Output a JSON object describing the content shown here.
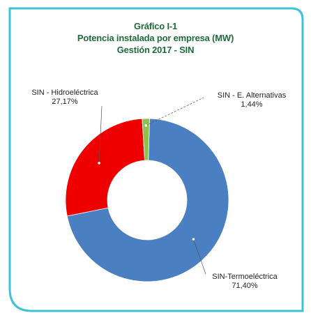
{
  "chart_data": {
    "type": "pie",
    "variant": "donut",
    "title_lines": [
      "Gráfico I-1",
      "Potencia instalada por empresa (MW)",
      "Gestión 2017 - SIN"
    ],
    "slices": [
      {
        "name": "SIN-Termoeléctrica",
        "value": 71.4,
        "value_label": "71,40%",
        "color": "#4a7fc1"
      },
      {
        "name": "SIN - Hidroeléctrica",
        "value": 27.17,
        "value_label": "27,17%",
        "color": "#ee0000"
      },
      {
        "name": "SIN - E. Alternativas",
        "value": 1.44,
        "value_label": "1,44%",
        "color": "#8fc24a"
      }
    ],
    "legend": "none"
  },
  "colors": {
    "frame": "#3cc3d6",
    "title": "#1f6b3a"
  }
}
